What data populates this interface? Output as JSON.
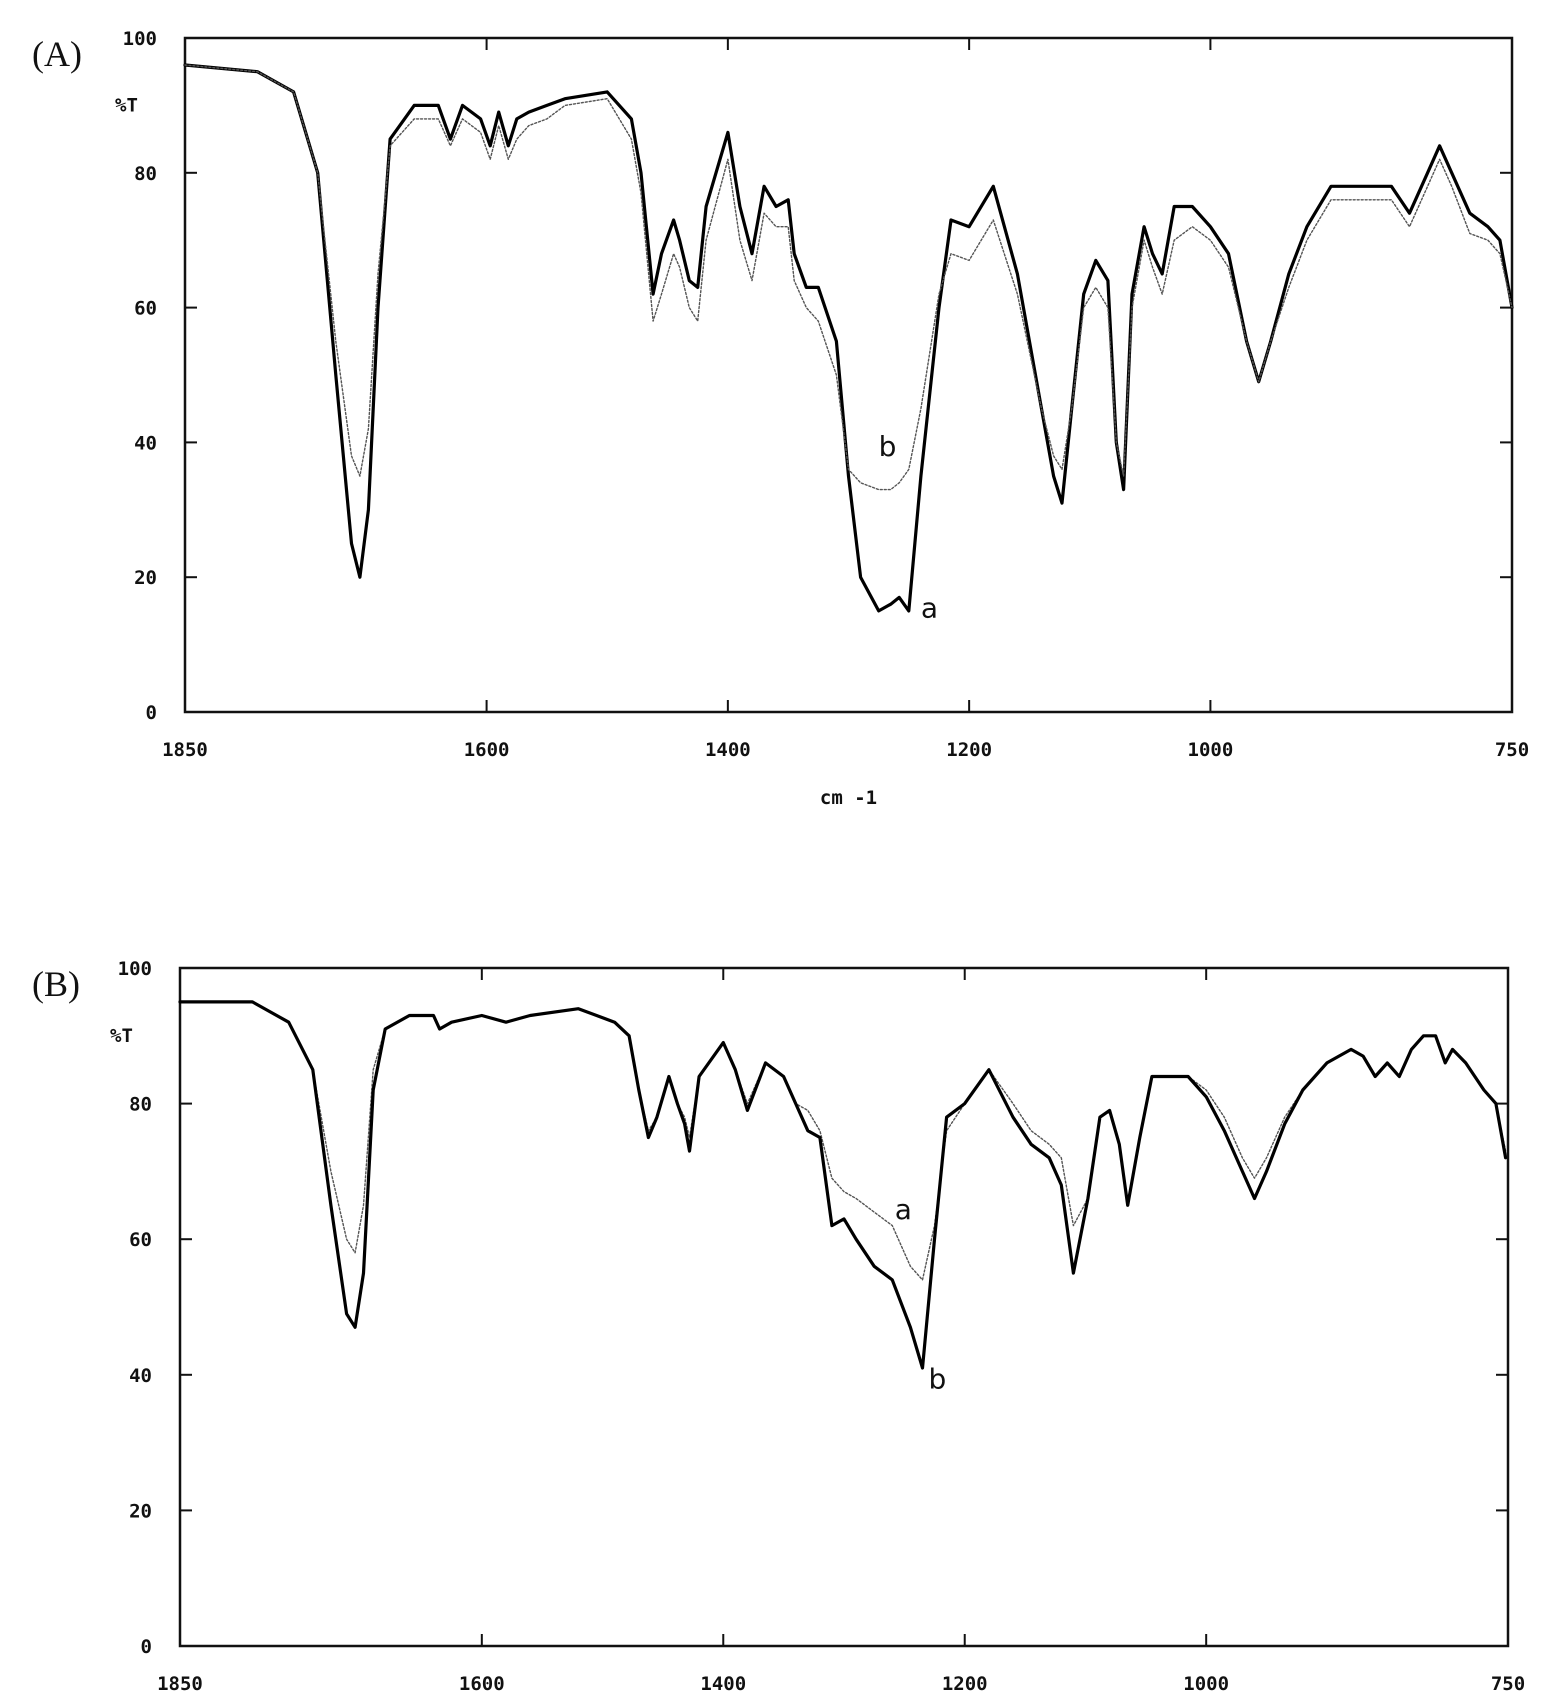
{
  "chart_data": [
    {
      "type": "line",
      "panel_label": "(A)",
      "ylabel": "%T",
      "xlabel": "cm -1",
      "xlim": [
        1850,
        750
      ],
      "ylim": [
        0,
        100
      ],
      "x_ticks": [
        "1850",
        "1600",
        "1400",
        "1200",
        "1000",
        "750"
      ],
      "y_ticks": [
        "0",
        "20",
        "40",
        "60",
        "80",
        "100"
      ],
      "series": [
        {
          "name": "a",
          "style": "solid",
          "label_at": [
            1240,
            14
          ],
          "x": [
            1850,
            1790,
            1760,
            1740,
            1725,
            1712,
            1705,
            1698,
            1690,
            1680,
            1660,
            1640,
            1630,
            1620,
            1605,
            1597,
            1590,
            1582,
            1575,
            1565,
            1550,
            1535,
            1500,
            1480,
            1472,
            1462,
            1455,
            1445,
            1440,
            1432,
            1425,
            1418,
            1400,
            1390,
            1380,
            1370,
            1360,
            1350,
            1345,
            1335,
            1325,
            1310,
            1300,
            1290,
            1275,
            1265,
            1258,
            1250,
            1240,
            1225,
            1215,
            1200,
            1180,
            1160,
            1140,
            1130,
            1123,
            1115,
            1105,
            1095,
            1085,
            1078,
            1072,
            1065,
            1055,
            1048,
            1040,
            1030,
            1015,
            1000,
            985,
            970,
            960,
            950,
            935,
            920,
            900,
            880,
            850,
            835,
            820,
            810,
            800,
            785,
            770,
            760,
            750
          ],
          "y": [
            96,
            95,
            92,
            80,
            50,
            25,
            20,
            30,
            60,
            85,
            90,
            90,
            85,
            90,
            88,
            84,
            89,
            84,
            88,
            89,
            90,
            91,
            92,
            88,
            80,
            62,
            68,
            73,
            70,
            64,
            63,
            75,
            86,
            75,
            68,
            78,
            75,
            76,
            68,
            63,
            63,
            55,
            35,
            20,
            15,
            16,
            17,
            15,
            35,
            60,
            73,
            72,
            78,
            65,
            45,
            35,
            31,
            45,
            62,
            67,
            64,
            40,
            33,
            62,
            72,
            68,
            65,
            75,
            75,
            72,
            68,
            55,
            49,
            55,
            65,
            72,
            78,
            78,
            78,
            74,
            80,
            84,
            80,
            74,
            72,
            70,
            60
          ]
        },
        {
          "name": "b",
          "style": "dotted",
          "label_at": [
            1275,
            38
          ],
          "x": [
            1850,
            1790,
            1760,
            1740,
            1725,
            1712,
            1705,
            1698,
            1690,
            1680,
            1660,
            1640,
            1630,
            1620,
            1605,
            1597,
            1590,
            1582,
            1575,
            1565,
            1550,
            1535,
            1500,
            1480,
            1472,
            1462,
            1455,
            1445,
            1440,
            1432,
            1425,
            1418,
            1400,
            1390,
            1380,
            1370,
            1360,
            1350,
            1345,
            1335,
            1325,
            1310,
            1300,
            1290,
            1275,
            1265,
            1258,
            1250,
            1240,
            1225,
            1215,
            1200,
            1180,
            1160,
            1140,
            1130,
            1123,
            1115,
            1105,
            1095,
            1085,
            1078,
            1072,
            1065,
            1055,
            1048,
            1040,
            1030,
            1015,
            1000,
            985,
            970,
            960,
            950,
            935,
            920,
            900,
            880,
            850,
            835,
            820,
            810,
            800,
            785,
            770,
            760,
            750
          ],
          "y": [
            96,
            95,
            92,
            80,
            55,
            38,
            35,
            42,
            65,
            84,
            88,
            88,
            84,
            88,
            86,
            82,
            87,
            82,
            85,
            87,
            88,
            90,
            91,
            85,
            77,
            58,
            62,
            68,
            66,
            60,
            58,
            70,
            82,
            70,
            64,
            74,
            72,
            72,
            64,
            60,
            58,
            50,
            36,
            34,
            33,
            33,
            34,
            36,
            45,
            62,
            68,
            67,
            73,
            62,
            45,
            38,
            36,
            45,
            60,
            63,
            60,
            40,
            35,
            60,
            70,
            66,
            62,
            70,
            72,
            70,
            66,
            55,
            49,
            55,
            63,
            70,
            76,
            76,
            76,
            72,
            78,
            82,
            78,
            71,
            70,
            68,
            60
          ]
        }
      ]
    },
    {
      "type": "line",
      "panel_label": "(B)",
      "ylabel": "%T",
      "xlabel": "",
      "xlim": [
        1850,
        750
      ],
      "ylim": [
        0,
        100
      ],
      "x_ticks": [
        "1850",
        "1600",
        "1400",
        "1200",
        "1000",
        "750"
      ],
      "y_ticks": [
        "0",
        "20",
        "40",
        "60",
        "80",
        "100"
      ],
      "series": [
        {
          "name": "a",
          "style": "dotted",
          "label_at": [
            1258,
            63
          ],
          "x": [
            1850,
            1790,
            1760,
            1740,
            1725,
            1712,
            1705,
            1698,
            1690,
            1680,
            1660,
            1640,
            1635,
            1625,
            1600,
            1580,
            1560,
            1520,
            1490,
            1478,
            1470,
            1462,
            1455,
            1445,
            1438,
            1432,
            1428,
            1420,
            1400,
            1390,
            1380,
            1365,
            1350,
            1340,
            1330,
            1320,
            1310,
            1300,
            1290,
            1275,
            1260,
            1245,
            1235,
            1225,
            1215,
            1200,
            1180,
            1160,
            1145,
            1130,
            1120,
            1110,
            1098,
            1088,
            1080,
            1072,
            1065,
            1055,
            1045,
            1030,
            1015,
            1000,
            985,
            970,
            960,
            950,
            935,
            920,
            900,
            880,
            870,
            860,
            850,
            840,
            830,
            820,
            810,
            802,
            796,
            785,
            770,
            760,
            752
          ],
          "y": [
            95,
            95,
            92,
            85,
            70,
            60,
            58,
            65,
            85,
            91,
            93,
            93,
            91,
            92,
            93,
            92,
            93,
            94,
            92,
            90,
            82,
            76,
            78,
            84,
            80,
            78,
            75,
            84,
            89,
            85,
            80,
            86,
            84,
            80,
            79,
            76,
            69,
            67,
            66,
            64,
            62,
            56,
            54,
            62,
            76,
            80,
            85,
            80,
            76,
            74,
            72,
            62,
            66,
            78,
            79,
            74,
            65,
            75,
            84,
            84,
            84,
            82,
            78,
            72,
            69,
            72,
            78,
            82,
            86,
            88,
            87,
            84,
            86,
            84,
            88,
            90,
            90,
            86,
            88,
            86,
            82,
            80,
            73
          ]
        },
        {
          "name": "b",
          "style": "solid",
          "label_at": [
            1230,
            38
          ],
          "x": [
            1850,
            1790,
            1760,
            1740,
            1725,
            1712,
            1705,
            1698,
            1690,
            1680,
            1660,
            1640,
            1635,
            1625,
            1600,
            1580,
            1560,
            1520,
            1490,
            1478,
            1470,
            1462,
            1455,
            1445,
            1438,
            1432,
            1428,
            1420,
            1400,
            1390,
            1380,
            1365,
            1350,
            1340,
            1330,
            1320,
            1310,
            1300,
            1290,
            1275,
            1260,
            1245,
            1235,
            1225,
            1215,
            1200,
            1180,
            1160,
            1145,
            1130,
            1120,
            1110,
            1098,
            1088,
            1080,
            1072,
            1065,
            1055,
            1045,
            1030,
            1015,
            1000,
            985,
            970,
            960,
            950,
            935,
            920,
            900,
            880,
            870,
            860,
            850,
            840,
            830,
            820,
            810,
            802,
            796,
            785,
            770,
            760,
            752
          ],
          "y": [
            95,
            95,
            92,
            85,
            65,
            49,
            47,
            55,
            82,
            91,
            93,
            93,
            91,
            92,
            93,
            92,
            93,
            94,
            92,
            90,
            82,
            75,
            78,
            84,
            80,
            77,
            73,
            84,
            89,
            85,
            79,
            86,
            84,
            80,
            76,
            75,
            62,
            63,
            60,
            56,
            54,
            47,
            41,
            60,
            78,
            80,
            85,
            78,
            74,
            72,
            68,
            55,
            66,
            78,
            79,
            74,
            65,
            75,
            84,
            84,
            84,
            81,
            76,
            70,
            66,
            70,
            77,
            82,
            86,
            88,
            87,
            84,
            86,
            84,
            88,
            90,
            90,
            86,
            88,
            86,
            82,
            80,
            72
          ]
        }
      ]
    }
  ]
}
